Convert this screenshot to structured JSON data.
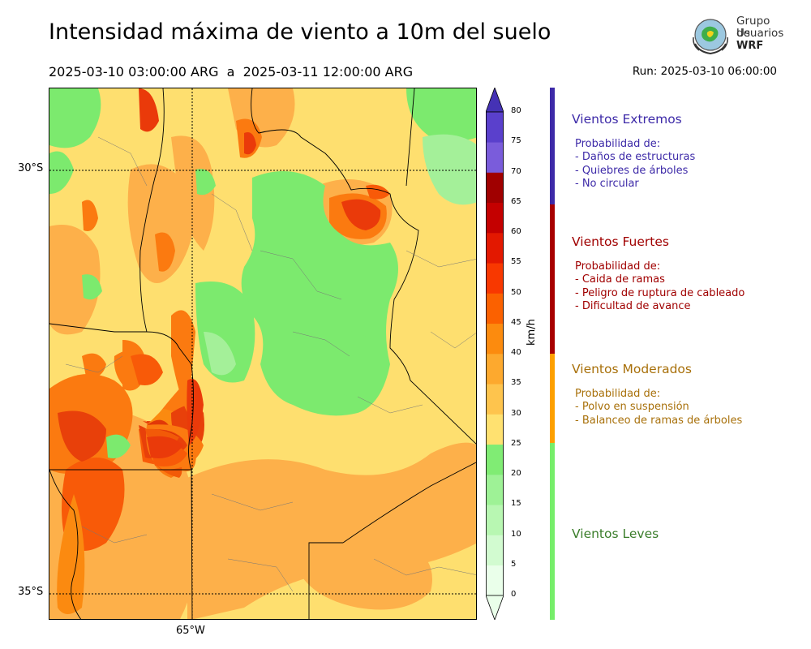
{
  "title": "Intensidad máxima de viento a 10m del suelo",
  "period": "2025-03-10 03:00:00 ARG  a  2025-03-11 12:00:00 ARG",
  "run": "Run: 2025-03-10 06:00:00",
  "logo": {
    "line1": "Grupo de",
    "line2": "Usuarios",
    "line3": "WRF"
  },
  "map": {
    "lat_labels": [
      "30°S",
      "35°S"
    ],
    "lon_labels": [
      "65°W"
    ]
  },
  "colorbar": {
    "unit": "km/h",
    "ticks": [
      "0",
      "5",
      "10",
      "15",
      "20",
      "25",
      "30",
      "35",
      "40",
      "45",
      "50",
      "55",
      "60",
      "65",
      "70",
      "75",
      "80"
    ],
    "colors": [
      "#eaffea",
      "#d2fbd0",
      "#b8f7b2",
      "#9ef296",
      "#80ec74",
      "#ffe170",
      "#fec44d",
      "#fda92e",
      "#fc8b0e",
      "#fb6100",
      "#f83800",
      "#e31800",
      "#c40000",
      "#a00000",
      "#7a5cdb",
      "#5a40cc",
      "#4532b5"
    ]
  },
  "categories": [
    {
      "title": "Vientos Extremos",
      "color": "#3d2aa8",
      "bar_color": "#3d2aa8",
      "lines": [
        "Probabilidad de:",
        "- Daños de estructuras",
        "- Quiebres de árboles",
        "- No circular"
      ]
    },
    {
      "title": "Vientos Fuertes",
      "color": "#a00000",
      "bar_color": "#a80000",
      "lines": [
        "Probabilidad de:",
        "- Caida de ramas",
        "- Peligro de ruptura de cableado",
        "- Dificultad de avance"
      ]
    },
    {
      "title": "Vientos Moderados",
      "color": "#a8700a",
      "bar_color": "#fda000",
      "lines": [
        "Probabilidad de:",
        "- Polvo en suspensión",
        "- Balanceo de ramas de árboles"
      ]
    },
    {
      "title": "Vientos Leves",
      "color": "#3a7d2a",
      "bar_color": "#76ee6a",
      "lines": []
    }
  ]
}
